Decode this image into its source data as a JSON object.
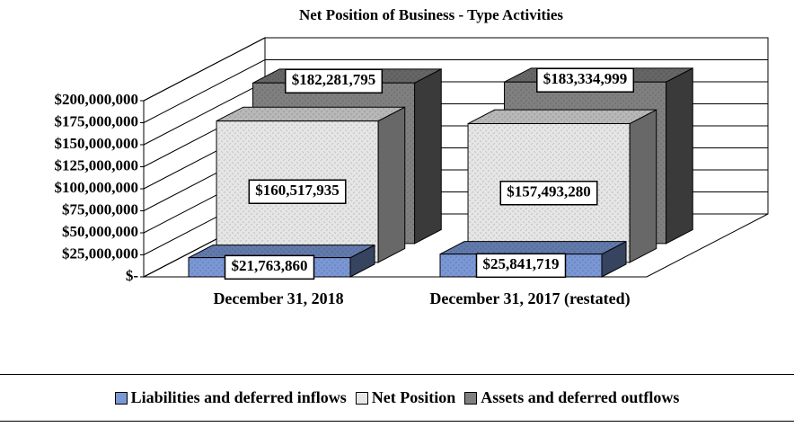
{
  "chart_data": {
    "type": "bar3d",
    "title": "Net Position of Business - Type Activities",
    "categories": [
      "December 31, 2018",
      "December 31, 2017 (restated)"
    ],
    "series": [
      {
        "name": "Liabilities and deferred inflows",
        "color": "#7b98d6",
        "values": [
          21763860,
          25841719
        ],
        "value_labels": [
          "$21,763,860",
          "$25,841,719"
        ]
      },
      {
        "name": "Net Position",
        "color": "#e6e6e6",
        "values": [
          160517935,
          157493280
        ],
        "value_labels": [
          "$160,517,935",
          "$157,493,280"
        ]
      },
      {
        "name": "Assets and deferred outflows",
        "color": "#808080",
        "values": [
          182281795,
          183334999
        ],
        "value_labels": [
          "$182,281,795",
          "$183,334,999"
        ]
      }
    ],
    "ylim": [
      0,
      200000000
    ],
    "yticks": [
      {
        "value": 0,
        "label": "$-"
      },
      {
        "value": 25000000,
        "label": "$25,000,000"
      },
      {
        "value": 50000000,
        "label": "$50,000,000"
      },
      {
        "value": 75000000,
        "label": "$75,000,000"
      },
      {
        "value": 100000000,
        "label": "$100,000,000"
      },
      {
        "value": 125000000,
        "label": "$125,000,000"
      },
      {
        "value": 150000000,
        "label": "$150,000,000"
      },
      {
        "value": 175000000,
        "label": "$175,000,000"
      },
      {
        "value": 200000000,
        "label": "$200,000,000"
      }
    ],
    "grid": true,
    "legend": "bottom"
  }
}
